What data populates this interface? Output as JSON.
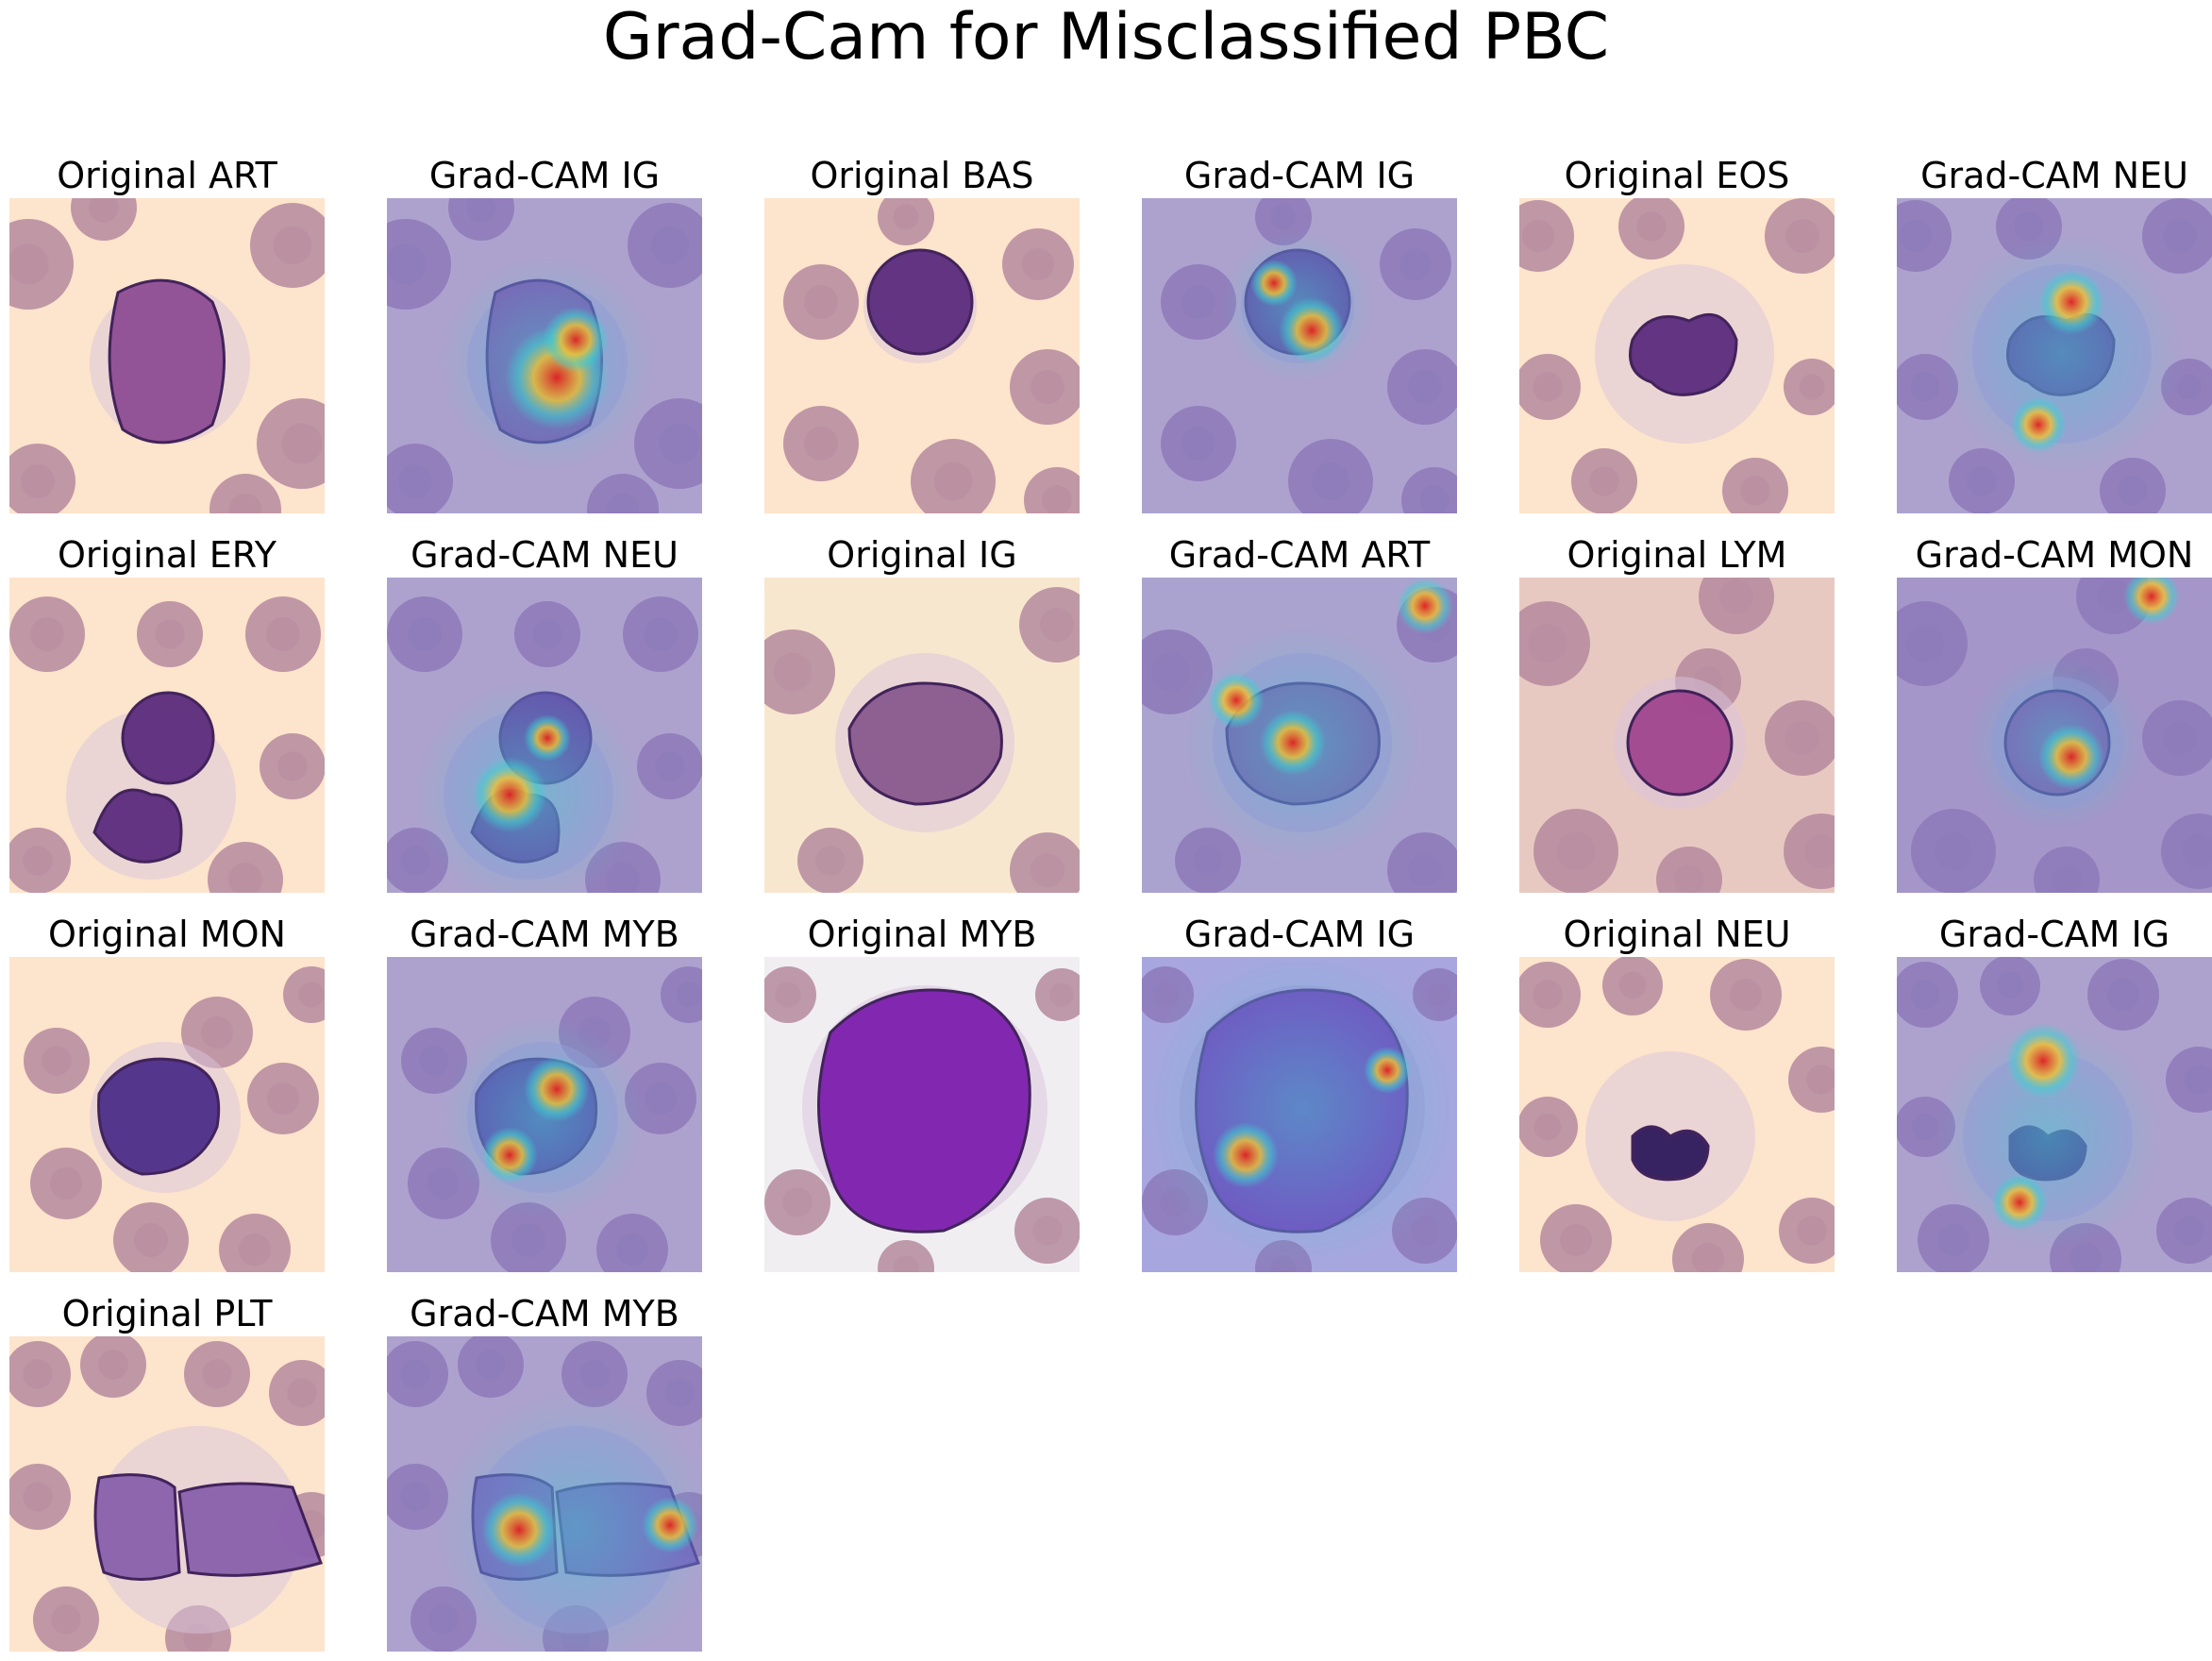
{
  "figure": {
    "title": "Grad-Cam for Misclassified PBC",
    "panels": [
      {
        "label": "Original ART",
        "kind": "original",
        "cell": "blob-large",
        "tint": "peach"
      },
      {
        "label": "Grad-CAM IG",
        "kind": "gradcam",
        "cell": "blob-large",
        "tint": "peach"
      },
      {
        "label": "Original BAS",
        "kind": "original",
        "cell": "round-small",
        "tint": "peach"
      },
      {
        "label": "Grad-CAM IG",
        "kind": "gradcam",
        "cell": "round-small",
        "tint": "peach"
      },
      {
        "label": "Original EOS",
        "kind": "original",
        "cell": "bilobed",
        "tint": "peach"
      },
      {
        "label": "Grad-CAM NEU",
        "kind": "gradcam",
        "cell": "bilobed",
        "tint": "peach"
      },
      {
        "label": "Original ERY",
        "kind": "original",
        "cell": "two-cells",
        "tint": "peach"
      },
      {
        "label": "Grad-CAM NEU",
        "kind": "gradcam",
        "cell": "two-cells",
        "tint": "peach"
      },
      {
        "label": "Original IG",
        "kind": "original",
        "cell": "oval",
        "tint": "cream"
      },
      {
        "label": "Grad-CAM ART",
        "kind": "gradcam",
        "cell": "oval",
        "tint": "cream"
      },
      {
        "label": "Original LYM",
        "kind": "original",
        "cell": "round-pink",
        "tint": "pink"
      },
      {
        "label": "Grad-CAM MON",
        "kind": "gradcam",
        "cell": "round-pink",
        "tint": "pink"
      },
      {
        "label": "Original MON",
        "kind": "original",
        "cell": "irregular",
        "tint": "peach"
      },
      {
        "label": "Grad-CAM MYB",
        "kind": "gradcam",
        "cell": "irregular",
        "tint": "peach"
      },
      {
        "label": "Original MYB",
        "kind": "original",
        "cell": "big-purple",
        "tint": "white"
      },
      {
        "label": "Grad-CAM IG",
        "kind": "gradcam",
        "cell": "big-purple",
        "tint": "white"
      },
      {
        "label": "Original NEU",
        "kind": "original",
        "cell": "neutrophil",
        "tint": "peach"
      },
      {
        "label": "Grad-CAM IG",
        "kind": "gradcam",
        "cell": "neutrophil",
        "tint": "peach"
      },
      {
        "label": "Original PLT",
        "kind": "original",
        "cell": "platelet-clump",
        "tint": "peach"
      },
      {
        "label": "Grad-CAM MYB",
        "kind": "gradcam",
        "cell": "platelet-clump",
        "tint": "peach"
      }
    ]
  },
  "colors": {
    "background": "#ffffff",
    "text": "#000000",
    "smear_peach": "#fde4cc",
    "smear_cream": "#f8e7cf",
    "smear_pink": "#e8c9c2",
    "smear_white": "#f1eef2",
    "rbc": "#b58a9e",
    "nucleus": "#5b2c7e",
    "cam_base": "#6b6bcf",
    "cam_hot": "#e02020",
    "cam_warm": "#f2c232",
    "cam_cool": "#3fd0d0"
  }
}
